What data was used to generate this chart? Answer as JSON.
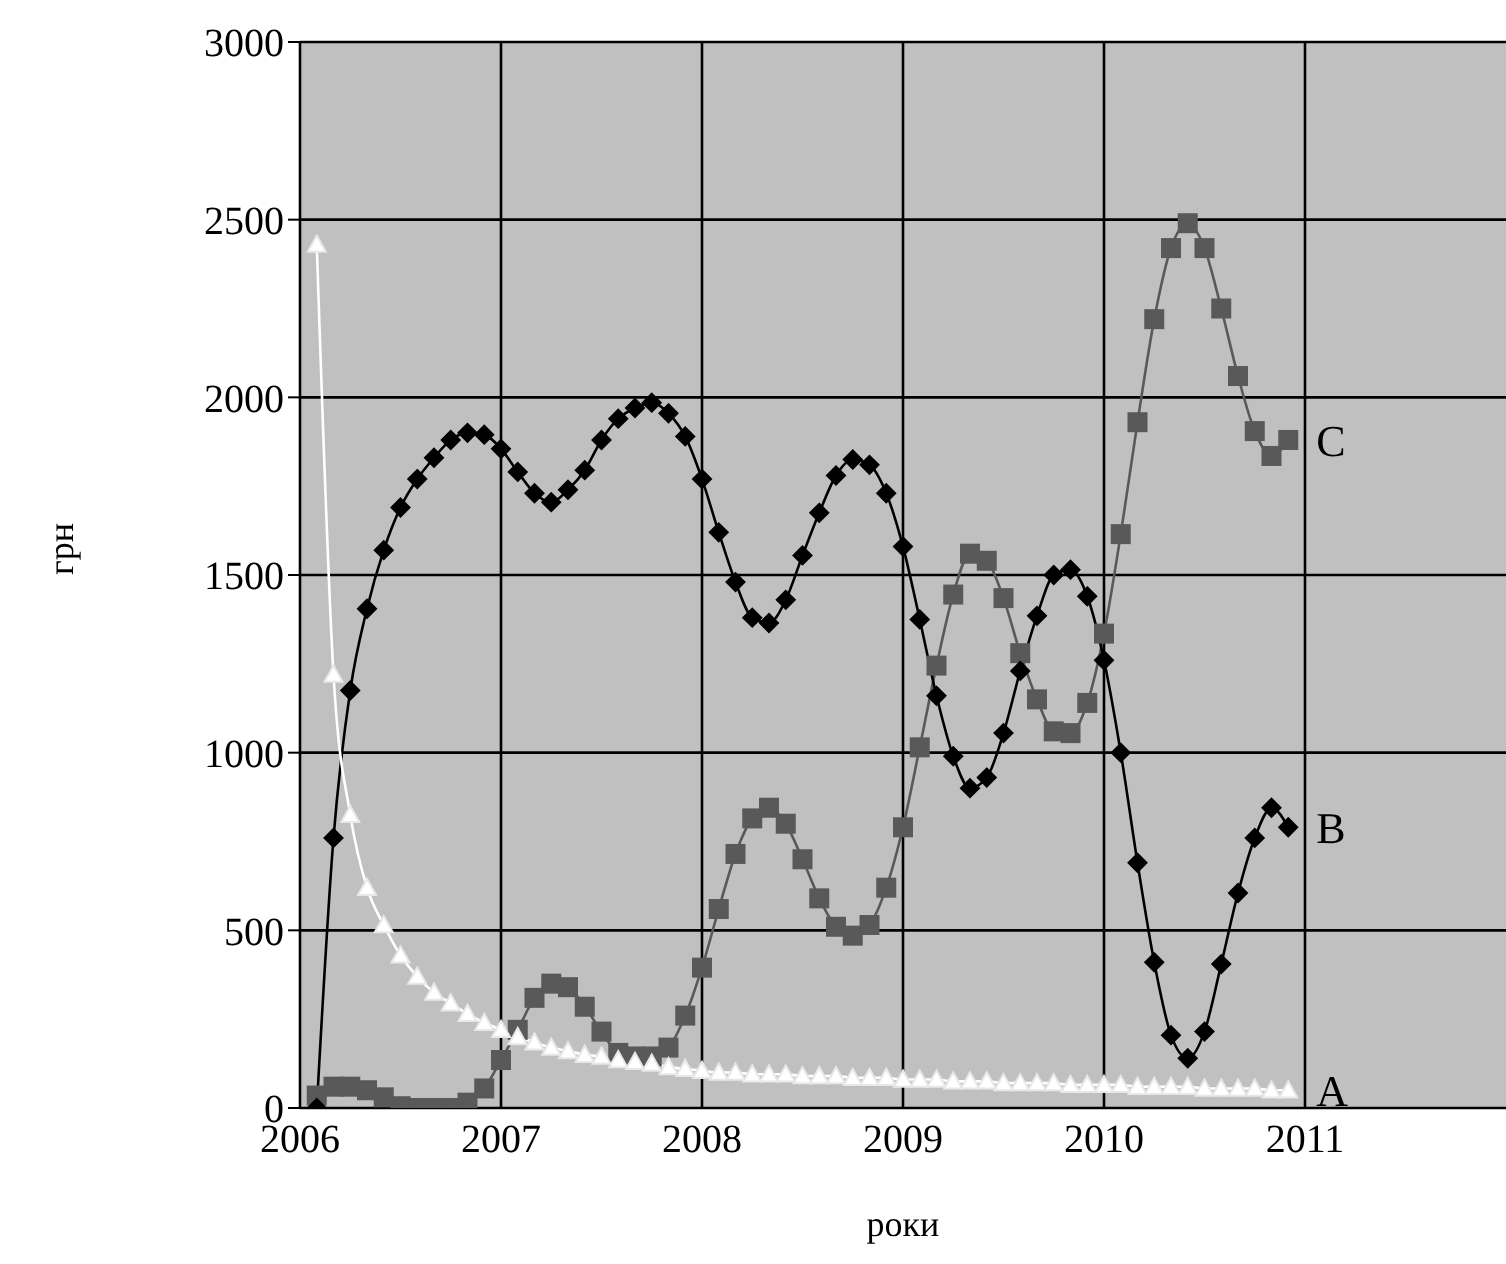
{
  "chart_data": {
    "type": "line",
    "xlabel": "роки",
    "ylabel": "грн",
    "x": [
      "2006-02",
      "2006-03",
      "2006-04",
      "2006-05",
      "2006-06",
      "2006-07",
      "2006-08",
      "2006-09",
      "2006-10",
      "2006-11",
      "2006-12",
      "2007-01",
      "2007-02",
      "2007-03",
      "2007-04",
      "2007-05",
      "2007-06",
      "2007-07",
      "2007-08",
      "2007-09",
      "2007-10",
      "2007-11",
      "2007-12",
      "2008-01",
      "2008-02",
      "2008-03",
      "2008-04",
      "2008-05",
      "2008-06",
      "2008-07",
      "2008-08",
      "2008-09",
      "2008-10",
      "2008-11",
      "2008-12",
      "2009-01",
      "2009-02",
      "2009-03",
      "2009-04",
      "2009-05",
      "2009-06",
      "2009-07",
      "2009-08",
      "2009-09",
      "2009-10",
      "2009-11",
      "2009-12",
      "2010-01",
      "2010-02",
      "2010-03",
      "2010-04",
      "2010-05",
      "2010-06",
      "2010-07",
      "2010-08",
      "2010-09",
      "2010-10",
      "2010-11",
      "2010-12"
    ],
    "series": [
      {
        "name": "A",
        "color": "#ffffff",
        "marker": "triangle",
        "values": [
          2430,
          1220,
          825,
          620,
          515,
          430,
          370,
          325,
          295,
          265,
          240,
          220,
          200,
          185,
          170,
          160,
          150,
          145,
          135,
          130,
          125,
          115,
          110,
          105,
          100,
          100,
          95,
          95,
          95,
          90,
          90,
          90,
          85,
          85,
          85,
          80,
          80,
          80,
          75,
          75,
          75,
          70,
          70,
          70,
          70,
          65,
          65,
          65,
          65,
          60,
          60,
          60,
          60,
          55,
          55,
          55,
          55,
          50,
          50
        ]
      },
      {
        "name": "B",
        "color": "#000000",
        "marker": "diamond",
        "values": [
          0,
          760,
          1175,
          1405,
          1570,
          1690,
          1770,
          1830,
          1880,
          1900,
          1895,
          1855,
          1790,
          1730,
          1705,
          1740,
          1795,
          1880,
          1940,
          1970,
          1985,
          1955,
          1890,
          1770,
          1620,
          1480,
          1380,
          1365,
          1430,
          1555,
          1675,
          1780,
          1825,
          1810,
          1730,
          1580,
          1375,
          1160,
          990,
          900,
          930,
          1055,
          1230,
          1385,
          1500,
          1515,
          1440,
          1260,
          1000,
          690,
          410,
          205,
          140,
          215,
          405,
          605,
          760,
          845,
          790
        ]
      },
      {
        "name": "C",
        "color": "#595959",
        "marker": "square",
        "values": [
          35,
          60,
          60,
          50,
          30,
          5,
          0,
          0,
          0,
          15,
          55,
          135,
          220,
          310,
          350,
          340,
          285,
          215,
          155,
          145,
          145,
          170,
          260,
          395,
          560,
          715,
          815,
          845,
          800,
          700,
          590,
          510,
          485,
          515,
          620,
          790,
          1015,
          1245,
          1445,
          1560,
          1540,
          1435,
          1280,
          1150,
          1060,
          1055,
          1140,
          1335,
          1615,
          1930,
          2220,
          2420,
          2490,
          2420,
          2250,
          2060,
          1905,
          1835,
          1880
        ]
      }
    ],
    "xlim": [
      "2006",
      "2012"
    ],
    "xticks": [
      "2006",
      "2007",
      "2008",
      "2009",
      "2010",
      "2011"
    ],
    "ylim": [
      0,
      3000
    ],
    "yticks": [
      0,
      500,
      1000,
      1500,
      2000,
      2500,
      3000
    ],
    "grid": true,
    "line_style": "solid"
  }
}
